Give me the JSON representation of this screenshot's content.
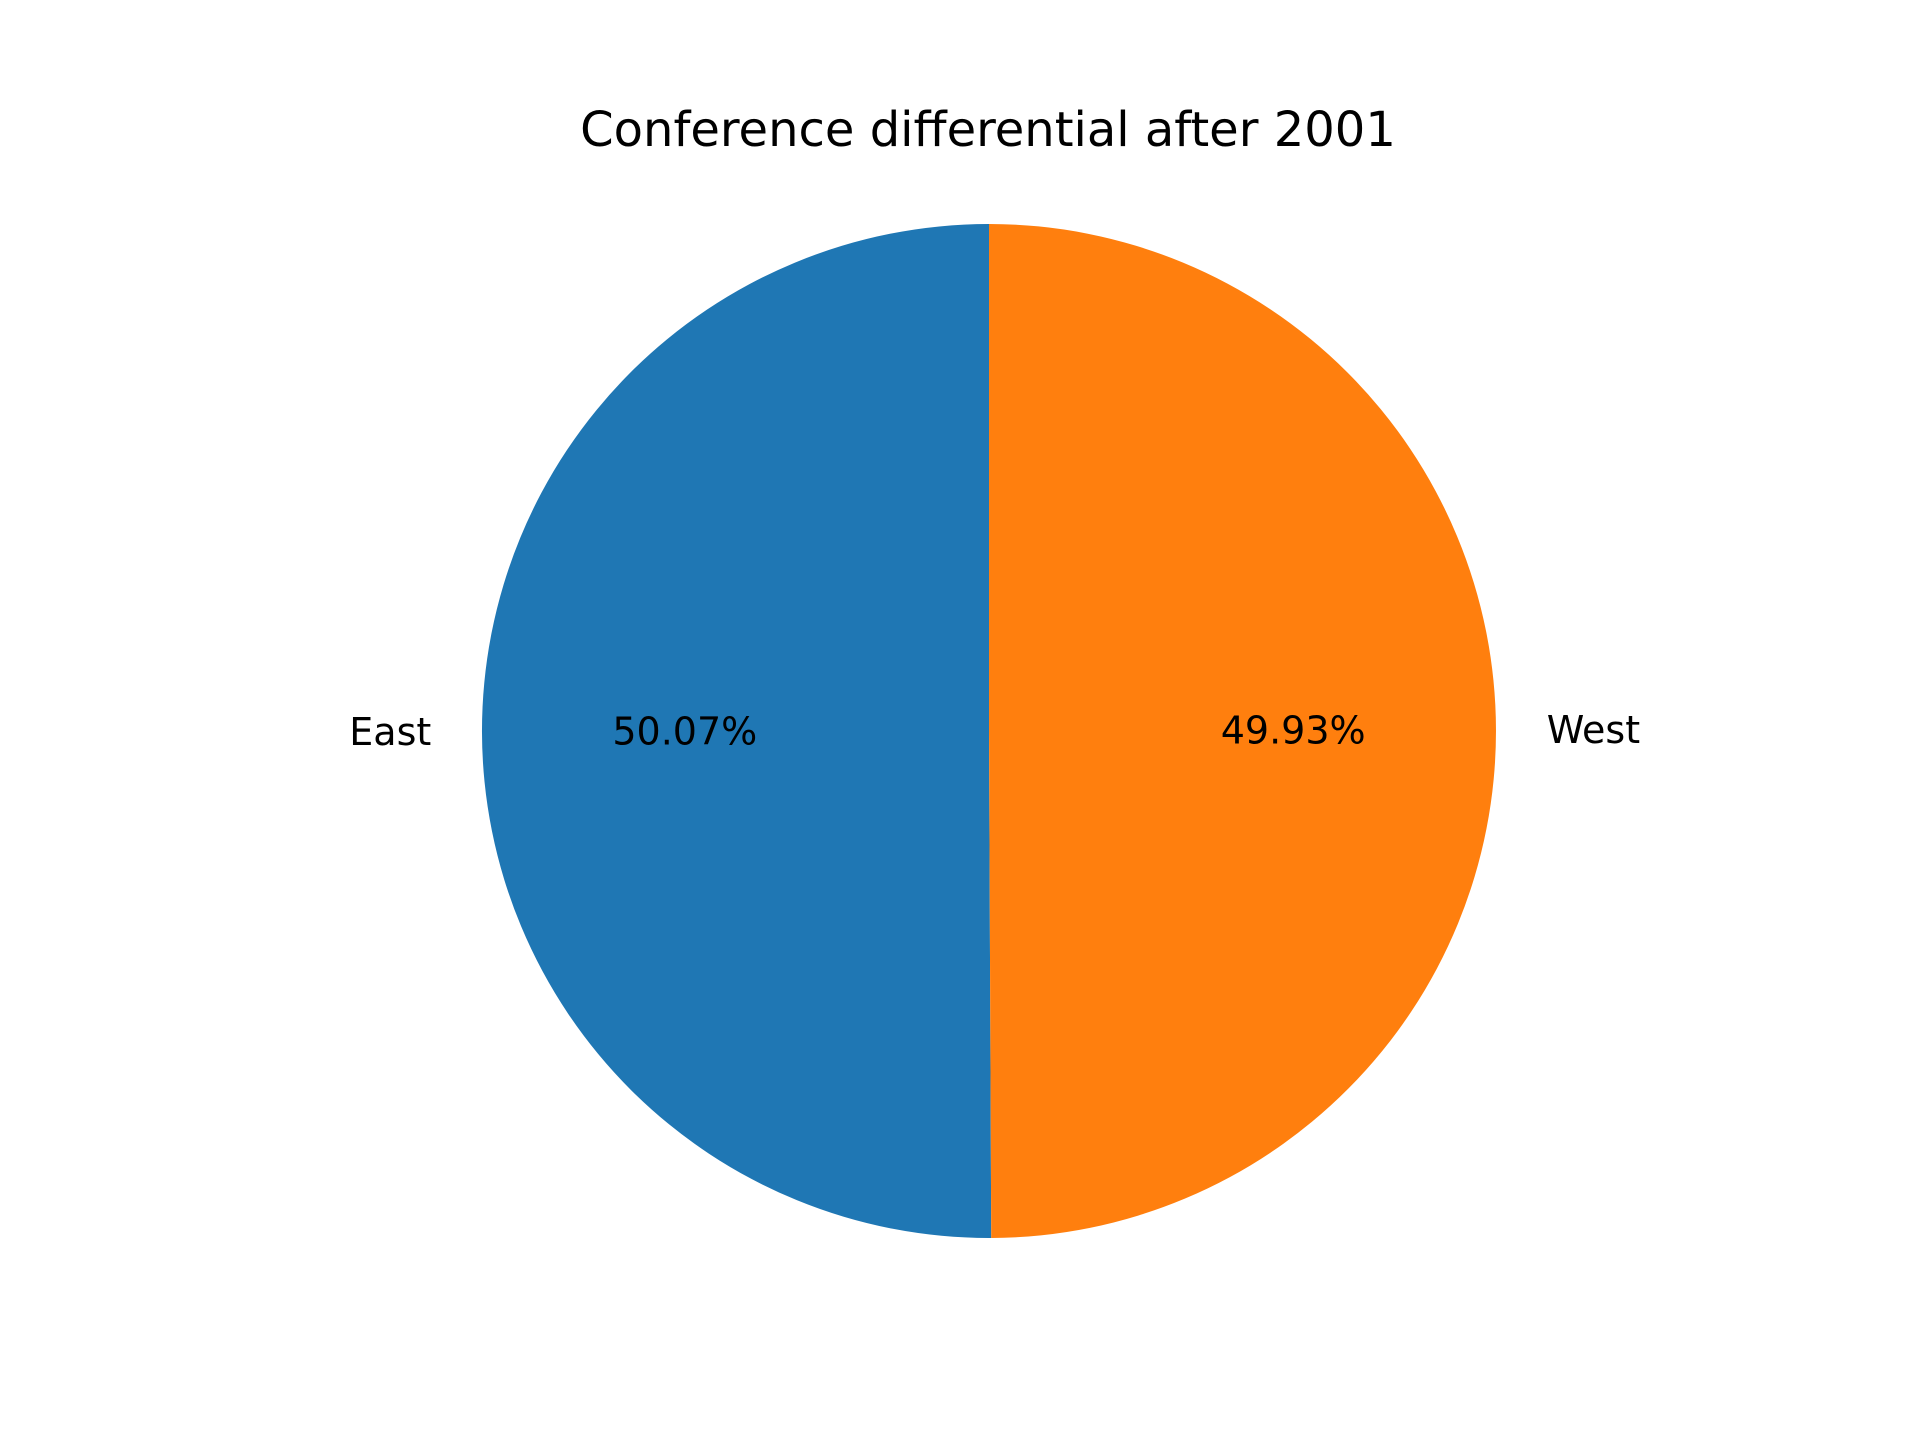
{
  "chart_data": {
    "type": "pie",
    "title": "Conference differential after 2001",
    "slices": [
      {
        "label": "East",
        "value": 50.07,
        "pct_label": "50.07%",
        "color": "#1f77b4"
      },
      {
        "label": "West",
        "value": 49.93,
        "pct_label": "49.93%",
        "color": "#ff7f0e"
      }
    ],
    "start_angle_deg": 90,
    "direction": "counterclockwise"
  }
}
